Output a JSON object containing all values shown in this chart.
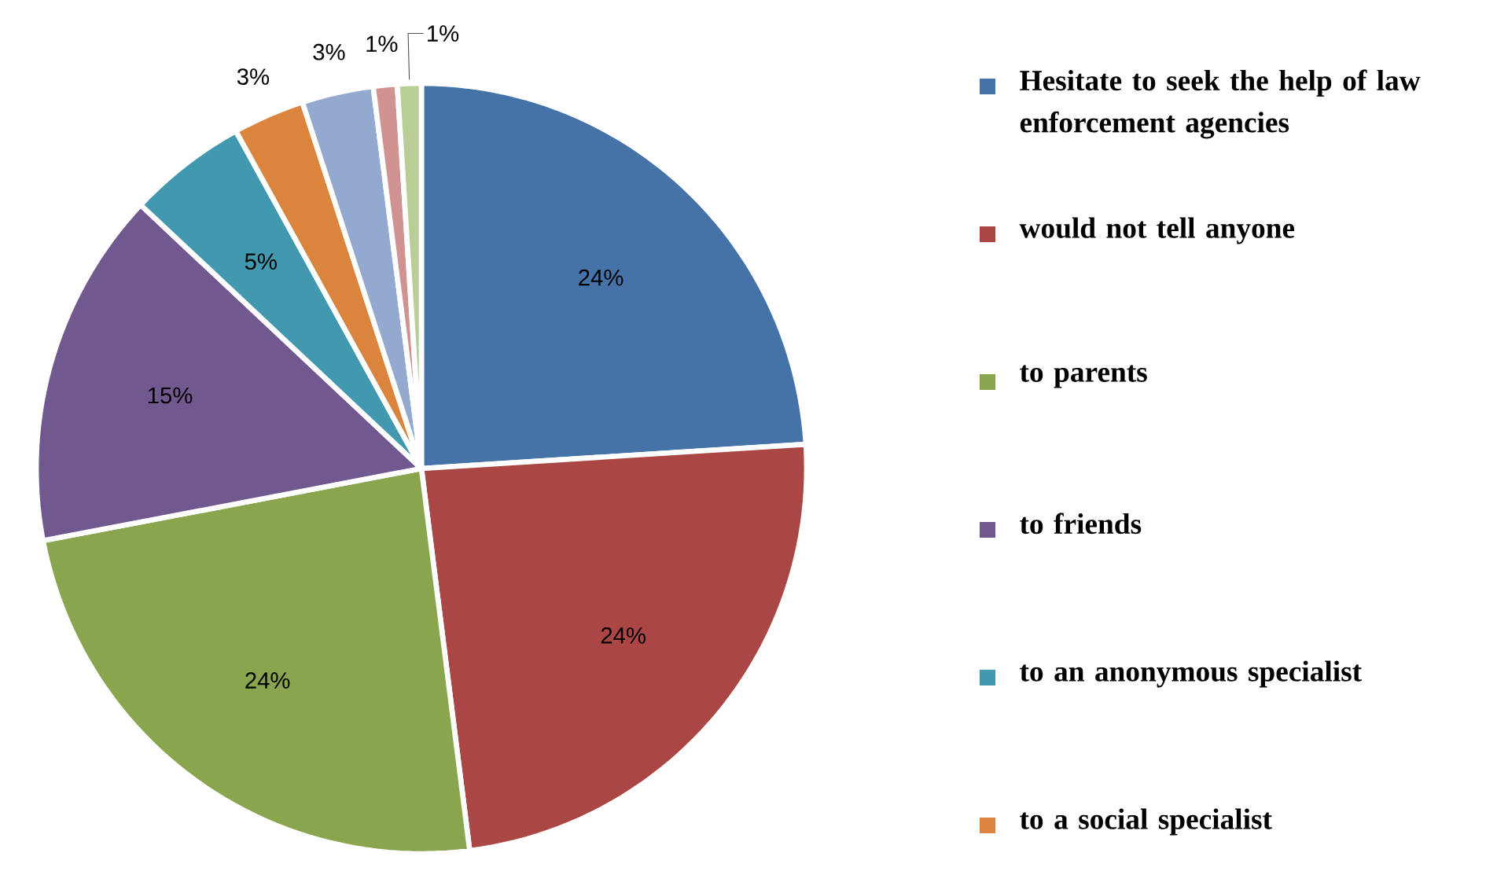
{
  "chart_data": {
    "type": "pie",
    "categories": [
      "Hesitate to seek the help of law enforcement agencies",
      "would not tell anyone",
      "to parents",
      "to friends",
      "to an anonymous specialist",
      "to a social specialist",
      null,
      null,
      null
    ],
    "values": [
      24,
      24,
      24,
      15,
      5,
      3,
      3,
      1,
      1
    ],
    "colors": [
      "#4572a7",
      "#aa4643",
      "#89a54e",
      "#71588f",
      "#4198af",
      "#db843d",
      "#93a9cf",
      "#d19392",
      "#b9cd96"
    ],
    "value_labels": [
      "24%",
      "24%",
      "24%",
      "15%",
      "5%",
      "3%",
      "3%",
      "1%",
      "1%"
    ],
    "legend": "right"
  }
}
